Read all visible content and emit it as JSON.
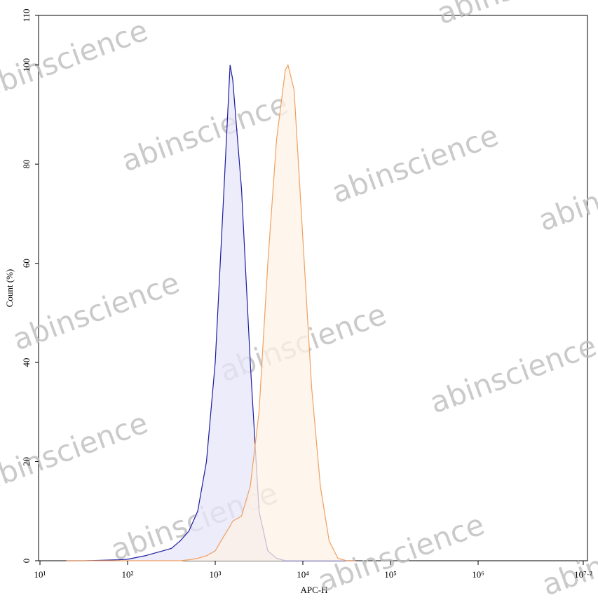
{
  "chart_data": {
    "type": "histogram-overlay",
    "x_label": "APC-H",
    "y_label": "Count (%)",
    "watermark": "abinscience",
    "xscale": "log",
    "x": [
      20,
      32,
      50,
      79,
      100,
      158,
      251,
      316,
      398,
      501,
      631,
      794,
      1000,
      1259,
      1479,
      1585,
      1995,
      2512,
      3162,
      3981,
      5012,
      6310,
      6761,
      7943,
      10000,
      12589,
      15849,
      19953,
      25119,
      31623,
      39811
    ],
    "series": [
      {
        "color": "#1c1c9e",
        "fill": "#e6e6fa",
        "values": [
          0,
          0,
          0.1,
          0.2,
          0.3,
          1,
          2,
          2.5,
          4,
          6,
          10,
          20,
          40,
          75,
          100,
          97,
          75,
          40,
          10,
          2,
          0.5,
          0,
          0,
          0,
          0,
          0,
          0,
          0,
          0,
          0,
          0
        ]
      },
      {
        "color": "#f0a060",
        "fill": "#fdf1e6",
        "values": [
          0,
          0,
          0,
          0,
          0,
          0,
          0,
          0,
          0,
          0.2,
          0.5,
          1,
          2,
          5,
          7,
          8,
          9,
          15,
          30,
          60,
          85,
          99,
          100,
          95,
          65,
          35,
          15,
          4,
          0.5,
          0,
          0
        ]
      }
    ],
    "xlim": [
      10,
      15848931.9
    ],
    "xticks": [
      {
        "value": 10,
        "label": "10¹"
      },
      {
        "value": 100,
        "label": "10²"
      },
      {
        "value": 1000,
        "label": "10³"
      },
      {
        "value": 10000,
        "label": "10⁴"
      },
      {
        "value": 100000,
        "label": "10⁵"
      },
      {
        "value": 1000000,
        "label": "10⁶"
      },
      {
        "value": 15848931.9,
        "label": "10⁷·²"
      }
    ],
    "ylim": [
      0,
      110
    ],
    "yticks": [
      0,
      20,
      40,
      60,
      80,
      100,
      110
    ]
  }
}
